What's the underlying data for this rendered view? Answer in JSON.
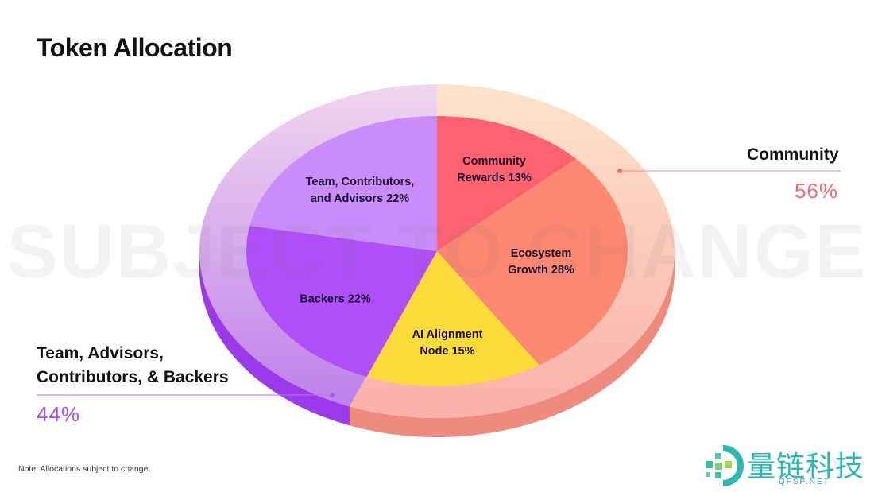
{
  "title": "Token Allocation",
  "watermark": "SUBJECT TO CHANGE",
  "note": "Note: Allocations subject to change.",
  "logo": {
    "text": "量链科技",
    "subtext": "QFSP.NET"
  },
  "groups": [
    {
      "label": "Community",
      "percent": "56%",
      "color": "#f26a7a"
    },
    {
      "label_line1": "Team, Advisors,",
      "label_line2": "Contributors, & Backers",
      "percent": "44%",
      "color": "#a24ff0"
    }
  ],
  "chart_data": {
    "type": "pie",
    "title": "Token Allocation",
    "slices": [
      {
        "label_line1": "Community",
        "label_line2": "Rewards 13%",
        "name": "Community Rewards",
        "value": 13,
        "color": "#fe6170",
        "group": "Community"
      },
      {
        "label_line1": "Ecosystem",
        "label_line2": "Growth 28%",
        "name": "Ecosystem Growth",
        "value": 28,
        "color": "#fe8872",
        "group": "Community"
      },
      {
        "label_line1": "AI Alignment",
        "label_line2": "Node 15%",
        "name": "AI Alignment Node",
        "value": 15,
        "color": "#fddb3a",
        "group": "Community"
      },
      {
        "label_line1": "Backers 22%",
        "label_line2": "",
        "name": "Backers",
        "value": 22,
        "color": "#b04ffa",
        "group": "Team, Advisors, Contributors, & Backers"
      },
      {
        "label_line1": "Team, Contributors,",
        "label_line2": "and Advisors 22%",
        "name": "Team, Contributors, and Advisors",
        "value": 22,
        "color": "#cb8cfb",
        "group": "Team, Advisors, Contributors, & Backers"
      }
    ],
    "outer_ring": [
      {
        "name": "Community",
        "value": 56
      },
      {
        "name": "Team, Advisors, Contributors, & Backers",
        "value": 44
      }
    ]
  }
}
